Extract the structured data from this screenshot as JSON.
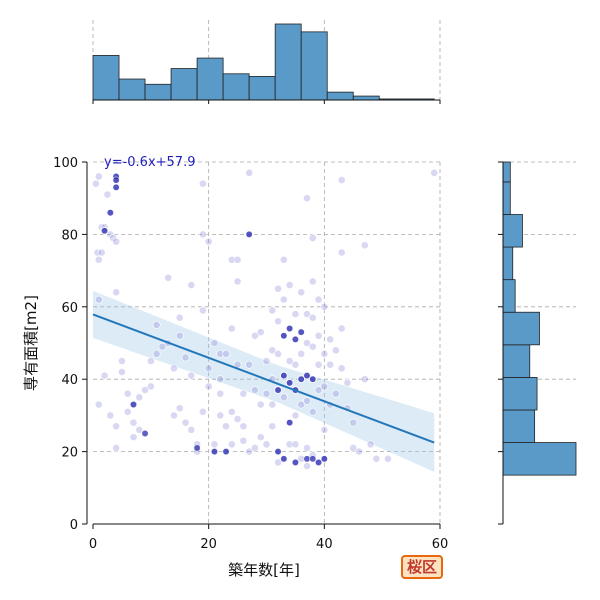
{
  "chart_data": {
    "type": "scatter",
    "xlabel": "築年数[年]",
    "ylabel": "専有面積[m2]",
    "xlim": [
      0,
      60
    ],
    "ylim": [
      0,
      100
    ],
    "xticks": [
      0,
      20,
      40,
      60
    ],
    "yticks": [
      0,
      20,
      40,
      60,
      80,
      100
    ],
    "grid": true,
    "regression": {
      "label": "y=-0.6x+57.9",
      "slope": -0.6,
      "intercept": 57.9,
      "x_range": [
        0,
        59
      ],
      "ci_at_start": 4,
      "ci_at_end": 6
    },
    "marginal_x": {
      "type": "histogram",
      "bins": [
        {
          "x0": 0,
          "x1": 4.5,
          "count": 17
        },
        {
          "x0": 4.5,
          "x1": 9,
          "count": 8
        },
        {
          "x0": 9,
          "x1": 13.5,
          "count": 6
        },
        {
          "x0": 13.5,
          "x1": 18,
          "count": 12
        },
        {
          "x0": 18,
          "x1": 22.5,
          "count": 16
        },
        {
          "x0": 22.5,
          "x1": 27,
          "count": 10
        },
        {
          "x0": 27,
          "x1": 31.5,
          "count": 9
        },
        {
          "x0": 31.5,
          "x1": 36,
          "count": 29
        },
        {
          "x0": 36,
          "x1": 40.5,
          "count": 26
        },
        {
          "x0": 40.5,
          "x1": 45,
          "count": 3
        },
        {
          "x0": 45,
          "x1": 49.5,
          "count": 1.5
        },
        {
          "x0": 49.5,
          "x1": 59,
          "count": 0.4
        }
      ]
    },
    "marginal_y": {
      "type": "histogram",
      "bins": [
        {
          "y0": 13.5,
          "y1": 22.5,
          "count": 30
        },
        {
          "y0": 22.5,
          "y1": 31.5,
          "count": 13
        },
        {
          "y0": 31.5,
          "y1": 40.5,
          "count": 14
        },
        {
          "y0": 40.5,
          "y1": 49.5,
          "count": 11
        },
        {
          "y0": 49.5,
          "y1": 58.5,
          "count": 15
        },
        {
          "y0": 58.5,
          "y1": 67.5,
          "count": 5
        },
        {
          "y0": 67.5,
          "y1": 76.5,
          "count": 4
        },
        {
          "y0": 76.5,
          "y1": 85.5,
          "count": 8
        },
        {
          "y0": 85.5,
          "y1": 94.5,
          "count": 3
        },
        {
          "y0": 94.5,
          "y1": 100,
          "count": 3
        }
      ]
    },
    "points": [
      [
        0.5,
        94
      ],
      [
        1,
        96
      ],
      [
        1.5,
        82
      ],
      [
        2,
        82
      ],
      [
        0.8,
        75
      ],
      [
        1.5,
        75
      ],
      [
        2.5,
        91
      ],
      [
        3,
        86
      ],
      [
        2,
        81
      ],
      [
        3,
        80
      ],
      [
        4,
        96
      ],
      [
        4,
        95
      ],
      [
        4,
        93
      ],
      [
        3.5,
        79
      ],
      [
        4,
        64
      ],
      [
        4,
        78
      ],
      [
        1,
        73
      ],
      [
        1,
        62
      ],
      [
        2,
        41
      ],
      [
        1,
        33
      ],
      [
        3,
        30
      ],
      [
        4,
        27
      ],
      [
        4,
        21
      ],
      [
        5,
        42
      ],
      [
        5,
        45
      ],
      [
        6,
        36
      ],
      [
        6,
        31
      ],
      [
        7,
        33
      ],
      [
        7,
        28
      ],
      [
        7,
        24
      ],
      [
        8,
        35
      ],
      [
        8,
        26
      ],
      [
        9,
        37
      ],
      [
        10,
        38
      ],
      [
        10,
        45
      ],
      [
        11,
        47
      ],
      [
        11,
        55
      ],
      [
        12,
        49
      ],
      [
        13,
        68
      ],
      [
        13,
        50
      ],
      [
        14,
        43
      ],
      [
        14,
        30
      ],
      [
        15,
        32
      ],
      [
        15,
        52
      ],
      [
        15,
        57
      ],
      [
        16,
        46
      ],
      [
        16,
        28
      ],
      [
        17,
        41
      ],
      [
        17,
        26
      ],
      [
        17,
        66
      ],
      [
        18,
        22
      ],
      [
        18,
        20
      ],
      [
        19,
        31
      ],
      [
        19,
        59
      ],
      [
        19,
        80
      ],
      [
        19,
        94
      ],
      [
        20,
        78
      ],
      [
        20,
        38
      ],
      [
        20,
        43
      ],
      [
        21,
        50
      ],
      [
        21,
        22
      ],
      [
        21,
        20
      ],
      [
        22,
        47
      ],
      [
        22,
        40
      ],
      [
        22,
        36
      ],
      [
        22,
        30
      ],
      [
        23,
        47
      ],
      [
        23,
        27
      ],
      [
        23,
        20
      ],
      [
        24,
        54
      ],
      [
        24,
        73
      ],
      [
        24,
        31
      ],
      [
        24,
        22
      ],
      [
        25,
        73
      ],
      [
        25,
        67
      ],
      [
        25,
        44
      ],
      [
        25,
        29
      ],
      [
        26,
        36
      ],
      [
        26,
        27
      ],
      [
        26,
        23
      ],
      [
        27,
        97
      ],
      [
        27,
        80
      ],
      [
        27,
        44
      ],
      [
        27,
        20
      ],
      [
        28,
        52
      ],
      [
        28,
        37
      ],
      [
        28,
        21
      ],
      [
        29,
        53
      ],
      [
        29,
        33
      ],
      [
        29,
        24
      ],
      [
        30,
        45
      ],
      [
        30,
        36
      ],
      [
        30,
        22
      ],
      [
        31,
        59
      ],
      [
        31,
        48
      ],
      [
        31,
        40
      ],
      [
        31,
        33
      ],
      [
        31,
        27
      ],
      [
        32,
        65
      ],
      [
        32,
        56
      ],
      [
        32,
        47
      ],
      [
        32,
        37
      ],
      [
        32,
        20
      ],
      [
        32,
        17
      ],
      [
        33,
        73
      ],
      [
        33,
        62
      ],
      [
        33,
        52
      ],
      [
        33,
        41
      ],
      [
        33,
        35
      ],
      [
        33,
        18
      ],
      [
        34,
        66
      ],
      [
        34,
        54
      ],
      [
        34,
        45
      ],
      [
        34,
        39
      ],
      [
        34,
        28
      ],
      [
        34,
        22
      ],
      [
        35,
        58
      ],
      [
        35,
        51
      ],
      [
        35,
        44
      ],
      [
        35,
        37
      ],
      [
        35,
        30
      ],
      [
        35,
        22
      ],
      [
        35,
        17
      ],
      [
        36,
        64
      ],
      [
        36,
        53
      ],
      [
        36,
        47
      ],
      [
        36,
        40
      ],
      [
        36,
        33
      ],
      [
        36,
        18
      ],
      [
        37,
        58
      ],
      [
        37,
        50
      ],
      [
        37,
        41
      ],
      [
        37,
        34
      ],
      [
        37,
        21
      ],
      [
        37,
        16
      ],
      [
        38,
        79
      ],
      [
        38,
        67
      ],
      [
        38,
        57
      ],
      [
        38,
        49
      ],
      [
        38,
        40
      ],
      [
        38,
        31
      ],
      [
        38,
        19
      ],
      [
        39,
        62
      ],
      [
        39,
        52
      ],
      [
        39,
        44
      ],
      [
        39,
        37
      ],
      [
        39,
        17
      ],
      [
        40,
        60
      ],
      [
        40,
        47
      ],
      [
        40,
        38
      ],
      [
        40,
        26
      ],
      [
        40,
        18
      ],
      [
        41,
        51
      ],
      [
        41,
        44
      ],
      [
        41,
        33
      ],
      [
        42,
        48
      ],
      [
        42,
        36
      ],
      [
        43,
        54
      ],
      [
        43,
        43
      ],
      [
        43,
        75
      ],
      [
        44,
        39
      ],
      [
        44,
        32
      ],
      [
        45,
        28
      ],
      [
        45,
        21
      ],
      [
        46,
        20
      ],
      [
        47,
        77
      ],
      [
        47,
        40
      ],
      [
        48,
        22
      ],
      [
        49,
        18
      ],
      [
        51,
        18
      ],
      [
        59,
        97
      ],
      [
        37,
        90
      ],
      [
        43,
        95
      ]
    ],
    "highlight_points": [
      [
        4,
        96
      ],
      [
        4,
        95
      ],
      [
        4,
        93
      ],
      [
        3,
        86
      ],
      [
        2,
        81
      ],
      [
        7,
        33
      ],
      [
        9,
        25
      ],
      [
        18,
        21
      ],
      [
        21,
        20
      ],
      [
        23,
        20
      ],
      [
        27,
        80
      ],
      [
        32,
        20
      ],
      [
        33,
        52
      ],
      [
        34,
        54
      ],
      [
        35,
        51
      ],
      [
        36,
        53
      ],
      [
        35,
        17
      ],
      [
        37,
        18
      ],
      [
        38,
        18
      ],
      [
        39,
        17
      ],
      [
        40,
        18
      ],
      [
        33,
        18
      ],
      [
        34,
        28
      ],
      [
        36,
        40
      ],
      [
        37,
        41
      ],
      [
        38,
        40
      ],
      [
        32,
        37
      ],
      [
        34,
        39
      ],
      [
        35,
        37
      ],
      [
        33,
        41
      ]
    ]
  },
  "badge": {
    "label": "桜区"
  },
  "colors": {
    "hist_fill": "#5a9ac9",
    "hist_stroke": "#222222",
    "line": "#2277bb",
    "ci_fill": "#9ec7e6",
    "point": "#8f8fde",
    "point_dark": "#2a2ab0",
    "grid": "#aaaaaa"
  }
}
